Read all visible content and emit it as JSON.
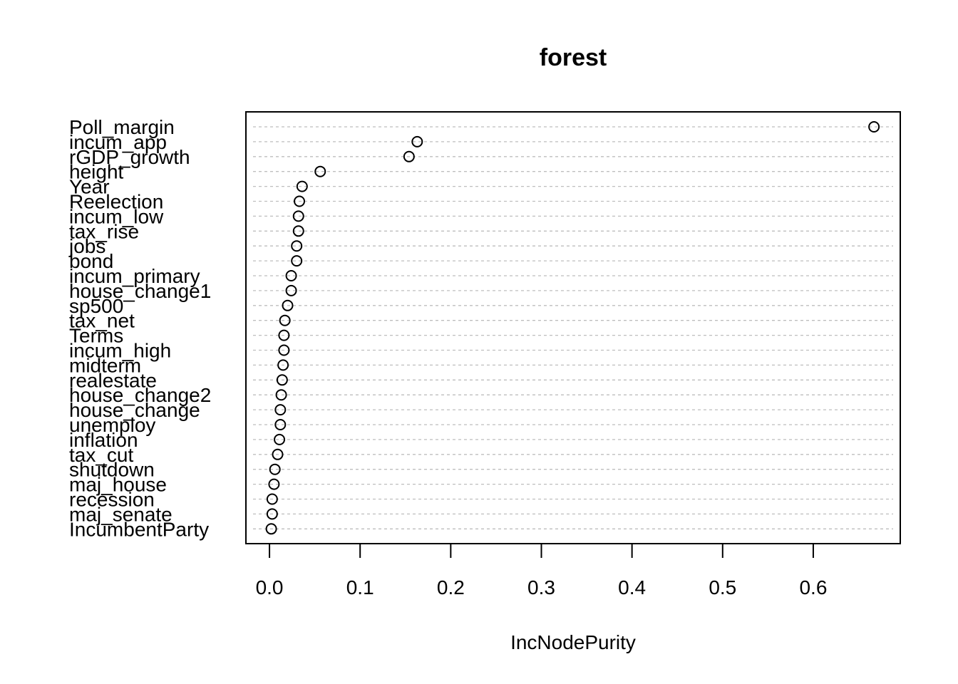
{
  "chart_data": {
    "type": "scatter",
    "title": "forest",
    "xlabel": "IncNodePurity",
    "ylabel": "",
    "xlim": [
      -0.026,
      0.696
    ],
    "xticks": [
      "0.0",
      "0.1",
      "0.2",
      "0.3",
      "0.4",
      "0.5",
      "0.6"
    ],
    "xtick_values": [
      0.0,
      0.1,
      0.2,
      0.3,
      0.4,
      0.5,
      0.6
    ],
    "grid": true,
    "categories": [
      "Poll_margin",
      "incum_app",
      "rGDP_growth",
      "height",
      "Year",
      "Reelection",
      "incum_low",
      "tax_rise",
      "jobs",
      "bond",
      "incum_primary",
      "house_change1",
      "sp500",
      "tax_net",
      "Terms",
      "incum_high",
      "midterm",
      "realestate",
      "house_change2",
      "house_change",
      "unemploy",
      "inflation",
      "tax_cut",
      "shutdown",
      "maj_house",
      "recession",
      "maj_senate",
      "IncumbentParty"
    ],
    "values": [
      0.667,
      0.163,
      0.154,
      0.056,
      0.036,
      0.033,
      0.032,
      0.032,
      0.03,
      0.03,
      0.024,
      0.024,
      0.02,
      0.017,
      0.016,
      0.016,
      0.015,
      0.014,
      0.013,
      0.012,
      0.012,
      0.011,
      0.009,
      0.006,
      0.005,
      0.003,
      0.003,
      0.002
    ]
  }
}
